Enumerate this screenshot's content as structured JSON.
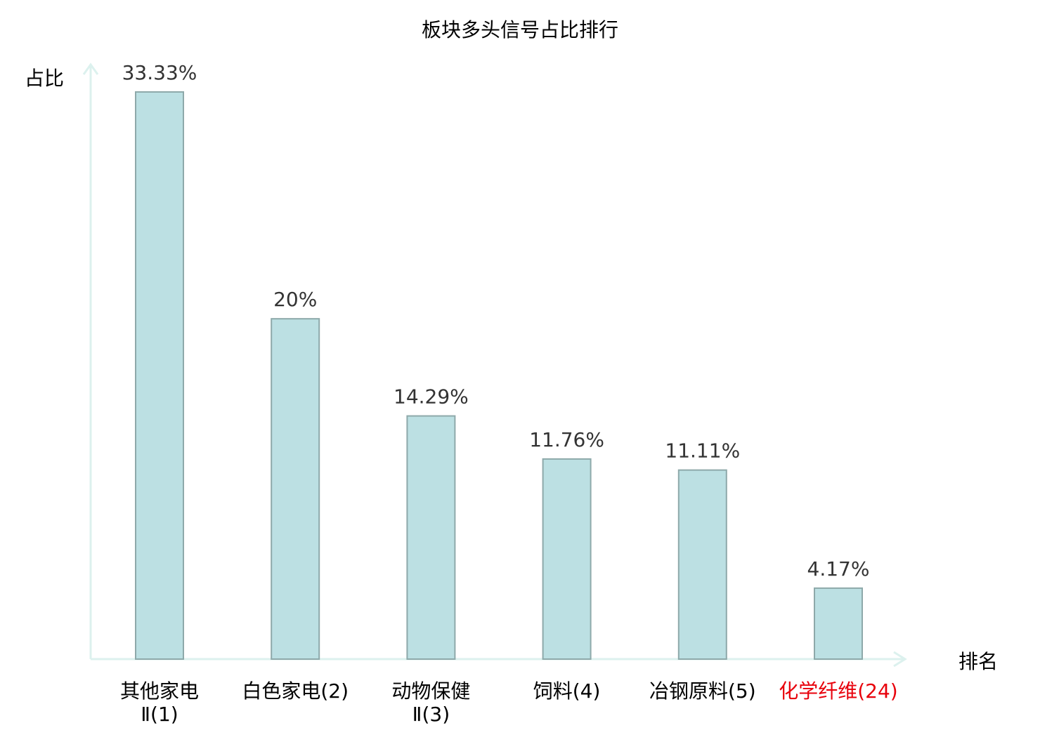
{
  "chart_data": {
    "type": "bar",
    "title": "板块多头信号占比排行",
    "xlabel": "排名",
    "ylabel": "占比",
    "categories": [
      "其他家电Ⅱ(1)",
      "白色家电(2)",
      "动物保健Ⅱ(3)",
      "饲料(4)",
      "冶钢原料(5)",
      "化学纤维(24)"
    ],
    "values": [
      33.33,
      20,
      14.29,
      11.76,
      11.11,
      4.17
    ],
    "value_labels": [
      "33.33%",
      "20%",
      "14.29%",
      "11.76%",
      "11.11%",
      "4.17%"
    ],
    "highlight_index": 5,
    "ylim": [
      0,
      35
    ],
    "grid": false,
    "colors": {
      "bar_fill": "#bce0e3",
      "bar_stroke": "#8ea9aa",
      "axis": "#dcf1ee",
      "highlight_text": "#e8000b",
      "text": "#000000",
      "value_text": "#333333"
    }
  }
}
